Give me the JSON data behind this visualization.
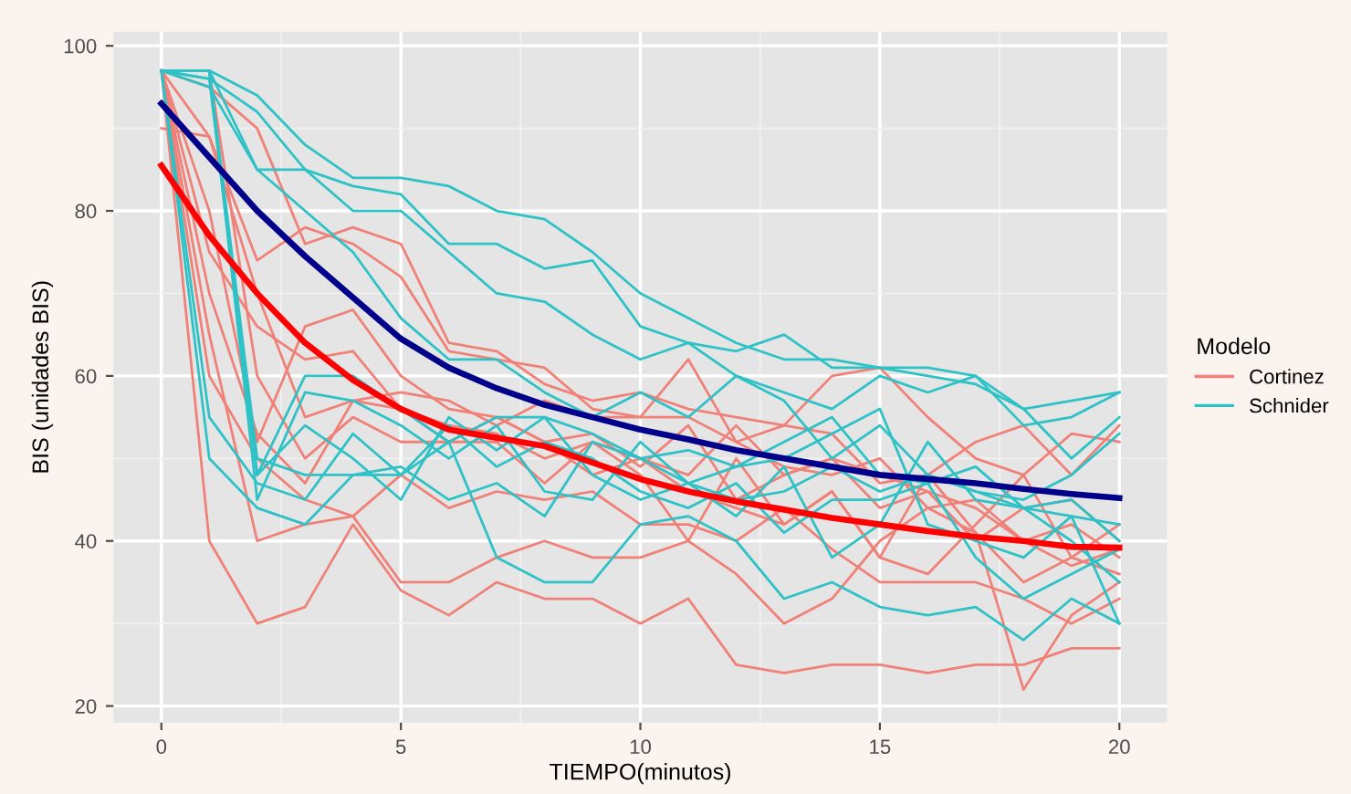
{
  "chart_data": {
    "type": "line",
    "xlabel": "TIEMPO(minutos)",
    "ylabel": "BIS (unidades BIS)",
    "legend_title": "Modelo",
    "x": [
      0,
      1,
      2,
      3,
      4,
      5,
      6,
      7,
      8,
      9,
      10,
      11,
      12,
      13,
      14,
      15,
      16,
      17,
      18,
      19,
      20
    ],
    "xlim": [
      -1,
      21
    ],
    "ylim": [
      18,
      101.7
    ],
    "xticks": [
      0,
      5,
      10,
      15,
      20
    ],
    "yticks": [
      20,
      40,
      60,
      80,
      100
    ],
    "grid": true,
    "legend": "right",
    "series": [
      {
        "name": "Cortinez",
        "color": "#f08178",
        "values": [
          97,
          95,
          90,
          76,
          78,
          76,
          64,
          63,
          59,
          57,
          58,
          56,
          55,
          54,
          60,
          61,
          55,
          50,
          48,
          53,
          52
        ]
      },
      {
        "color": "#f08178",
        "values": [
          97,
          89,
          74,
          78,
          76,
          72,
          63,
          62,
          61,
          56,
          55,
          62,
          52,
          54,
          53,
          47,
          48,
          52,
          54,
          48,
          54
        ]
      },
      {
        "color": "#f08178",
        "values": [
          97,
          75,
          66,
          62,
          63,
          56,
          54,
          53,
          50,
          52,
          50,
          48,
          54,
          48,
          50,
          48,
          46,
          44,
          40,
          42,
          38
        ]
      },
      {
        "color": "#f08178",
        "values": [
          90,
          89,
          70,
          55,
          57,
          58,
          57,
          54,
          57,
          55,
          55,
          55,
          52,
          49,
          48,
          50,
          44,
          45,
          40,
          37,
          39
        ]
      },
      {
        "color": "#f08178",
        "values": [
          97,
          80,
          52,
          66,
          68,
          60,
          56,
          55,
          52,
          53,
          49,
          54,
          45,
          48,
          50,
          44,
          46,
          40,
          44,
          45,
          40
        ]
      },
      {
        "color": "#f08178",
        "values": [
          97,
          70,
          53,
          47,
          57,
          56,
          52,
          55,
          52,
          48,
          50,
          46,
          44,
          42,
          46,
          38,
          48,
          41,
          35,
          38,
          36
        ]
      },
      {
        "color": "#f08178",
        "values": [
          97,
          65,
          40,
          42,
          43,
          48,
          44,
          46,
          45,
          46,
          42,
          42,
          40,
          44,
          39,
          35,
          35,
          35,
          33,
          30,
          33
        ]
      },
      {
        "color": "#f08178",
        "values": [
          97,
          60,
          50,
          45,
          43,
          35,
          35,
          38,
          40,
          38,
          38,
          40,
          36,
          30,
          33,
          40,
          44,
          41,
          22,
          31,
          35
        ]
      },
      {
        "color": "#f08178",
        "values": [
          97,
          40,
          30,
          32,
          42,
          34,
          31,
          35,
          33,
          33,
          30,
          33,
          25,
          24,
          25,
          25,
          24,
          25,
          25,
          27,
          27
        ]
      },
      {
        "color": "#f08178",
        "values": [
          97,
          97,
          60,
          50,
          55,
          52,
          52,
          52,
          47,
          52,
          48,
          40,
          50,
          42,
          46,
          38,
          36,
          42,
          48,
          38,
          42
        ]
      },
      {
        "name": "Schnider",
        "color": "#2ec2c6",
        "values": [
          97,
          97,
          94,
          88,
          84,
          84,
          83,
          80,
          79,
          75,
          70,
          67,
          64,
          62,
          62,
          61,
          60,
          59,
          56,
          57,
          58
        ]
      },
      {
        "color": "#2ec2c6",
        "values": [
          97,
          97,
          85,
          85,
          83,
          82,
          76,
          76,
          73,
          74,
          66,
          64,
          63,
          65,
          61,
          61,
          61,
          60,
          54,
          55,
          58
        ]
      },
      {
        "color": "#2ec2c6",
        "values": [
          97,
          96,
          92,
          85,
          80,
          80,
          75,
          70,
          69,
          65,
          62,
          64,
          60,
          58,
          56,
          60,
          58,
          60,
          56,
          50,
          55
        ]
      },
      {
        "color": "#2ec2c6",
        "values": [
          97,
          95,
          85,
          80,
          75,
          67,
          62,
          62,
          58,
          55,
          58,
          55,
          60,
          57,
          50,
          54,
          48,
          46,
          44,
          43,
          30
        ]
      },
      {
        "color": "#2ec2c6",
        "values": [
          97,
          96,
          48,
          60,
          60,
          56,
          52,
          55,
          55,
          53,
          50,
          51,
          49,
          52,
          55,
          48,
          47,
          49,
          44,
          45,
          40
        ]
      },
      {
        "color": "#2ec2c6",
        "values": [
          97,
          97,
          45,
          58,
          57,
          54,
          50,
          54,
          46,
          45,
          52,
          47,
          45,
          46,
          49,
          46,
          48,
          46,
          45,
          48,
          53
        ]
      },
      {
        "color": "#2ec2c6",
        "values": [
          97,
          50,
          44,
          42,
          48,
          49,
          45,
          47,
          43,
          52,
          50,
          47,
          49,
          50,
          53,
          56,
          42,
          40,
          38,
          43,
          42
        ]
      },
      {
        "color": "#2ec2c6",
        "values": [
          97,
          97,
          48,
          54,
          50,
          45,
          55,
          51,
          55,
          48,
          45,
          47,
          43,
          49,
          38,
          42,
          52,
          45,
          44,
          40,
          35
        ]
      },
      {
        "color": "#2ec2c6",
        "values": [
          97,
          55,
          47,
          45,
          53,
          48,
          54,
          49,
          52,
          50,
          46,
          44,
          47,
          41,
          45,
          45,
          47,
          38,
          33,
          36,
          39
        ]
      },
      {
        "color": "#2ec2c6",
        "values": [
          97,
          97,
          50,
          48,
          48,
          48,
          52,
          38,
          35,
          35,
          42,
          43,
          40,
          33,
          35,
          32,
          31,
          32,
          28,
          33,
          30
        ]
      },
      {
        "color": "#00008b",
        "values": [
          93,
          86.5,
          80,
          74.5,
          69.5,
          64.5,
          61,
          58.5,
          56.5,
          55,
          53.5,
          52.3,
          51,
          50,
          49,
          48,
          47.5,
          47,
          46.3,
          45.7,
          45.2
        ]
      },
      {
        "color": "#ff0000",
        "values": [
          85.5,
          77,
          70,
          64,
          59.5,
          56,
          53.5,
          52.5,
          51.5,
          49.5,
          47.5,
          46,
          44.8,
          43.8,
          42.8,
          42,
          41.2,
          40.5,
          40,
          39.3,
          39.2
        ]
      }
    ]
  }
}
